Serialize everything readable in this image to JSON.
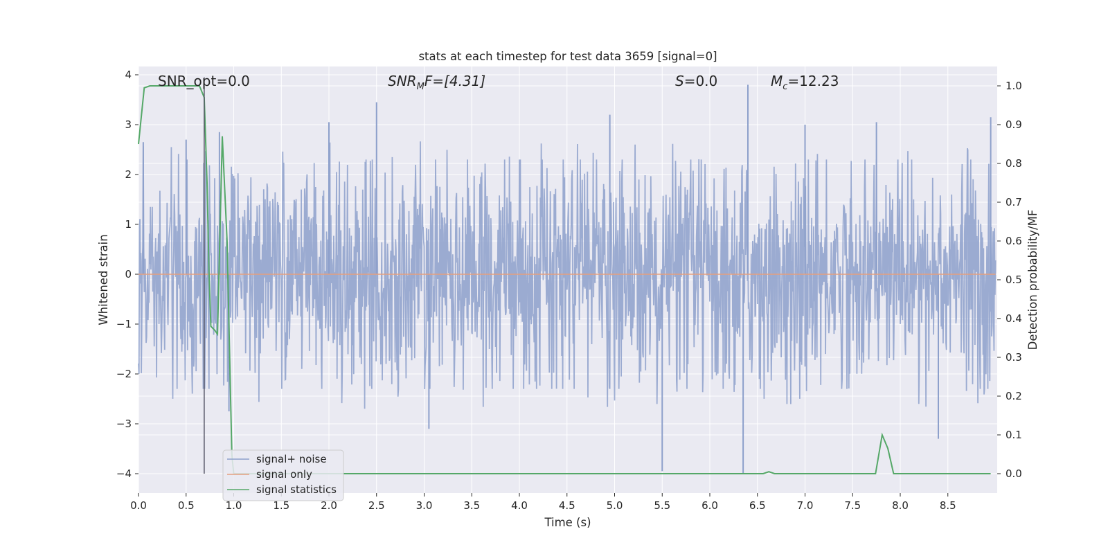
{
  "chart_data": {
    "type": "line",
    "title": "stats at each timestep for test data 3659 [signal=0]",
    "xlabel": "Time (s)",
    "ylabel": "Whitened strain",
    "y2label": "Detection probability/MF",
    "xlim": [
      0.0,
      9.0
    ],
    "ylim": [
      -4.4,
      4.15
    ],
    "y2lim": [
      -0.05,
      1.04
    ],
    "xticks": [
      "0.0",
      "0.5",
      "1.0",
      "1.5",
      "2.0",
      "2.5",
      "3.0",
      "3.5",
      "4.0",
      "4.5",
      "5.0",
      "5.5",
      "6.0",
      "6.5",
      "7.0",
      "7.5",
      "8.0",
      "8.5"
    ],
    "yticks": [
      "4",
      "3",
      "2",
      "1",
      "0",
      "−1",
      "−2",
      "−3",
      "−4"
    ],
    "y2ticks": [
      "1.0",
      "0.9",
      "0.8",
      "0.7",
      "0.6",
      "0.5",
      "0.4",
      "0.3",
      "0.2",
      "0.1",
      "0.0"
    ],
    "grid": true,
    "legend_position": "lower-left",
    "annotations": {
      "snr_opt": "SNR_opt=0.0",
      "snr_mf_sym": "SNR",
      "snr_mf_sub": "M",
      "snr_mf_rest": "F=[4.31]",
      "s_sym": "S",
      "s_rest": "=0.0",
      "mc_sym": "M",
      "mc_sub": "c",
      "mc_rest": "=12.23"
    },
    "vline_x": 0.69,
    "series": [
      {
        "name": "signal+ noise",
        "color": "#8da0cb",
        "axis": "left",
        "style": "dense noise, amplitude ~ ±1.6 with spikes",
        "envelope_peaks": [
          [
            0.05,
            2.65
          ],
          [
            0.5,
            2.7
          ],
          [
            0.85,
            2.85
          ],
          [
            2.0,
            3.05
          ],
          [
            2.5,
            3.45
          ],
          [
            4.95,
            3.2
          ],
          [
            6.4,
            3.8
          ],
          [
            7.0,
            3.0
          ],
          [
            7.75,
            3.05
          ],
          [
            8.95,
            3.15
          ]
        ],
        "envelope_troughs": [
          [
            0.95,
            -2.75
          ],
          [
            3.05,
            -3.1
          ],
          [
            5.5,
            -3.95
          ],
          [
            6.35,
            -4.0
          ],
          [
            8.4,
            -3.3
          ]
        ]
      },
      {
        "name": "signal only",
        "color": "#e5a07f",
        "axis": "left",
        "x": [
          0.0,
          9.0
        ],
        "y": [
          0.0,
          0.0
        ]
      },
      {
        "name": "signal statistics",
        "color": "#55a868",
        "axis": "right",
        "x": [
          0.0,
          0.06,
          0.12,
          0.2,
          0.3,
          0.4,
          0.5,
          0.6,
          0.64,
          0.69,
          0.72,
          0.74,
          0.76,
          0.8,
          0.83,
          0.88,
          0.93,
          0.98,
          1.0,
          1.06,
          1.3,
          2.0,
          3.0,
          4.0,
          5.0,
          6.0,
          6.56,
          6.62,
          6.68,
          7.0,
          7.5,
          7.74,
          7.81,
          7.87,
          7.93,
          8.0,
          8.5,
          8.95
        ],
        "y": [
          0.85,
          0.995,
          1.0,
          1.0,
          1.0,
          1.0,
          1.0,
          1.0,
          1.0,
          0.97,
          0.75,
          0.52,
          0.38,
          0.37,
          0.36,
          0.87,
          0.6,
          0.05,
          0.0,
          0.0,
          0.0,
          0.0,
          0.0,
          0.0,
          0.0,
          0.0,
          0.0,
          0.005,
          0.0,
          0.0,
          0.0,
          0.0,
          0.1,
          0.065,
          0.0,
          0.0,
          0.0,
          0.0
        ]
      }
    ]
  }
}
